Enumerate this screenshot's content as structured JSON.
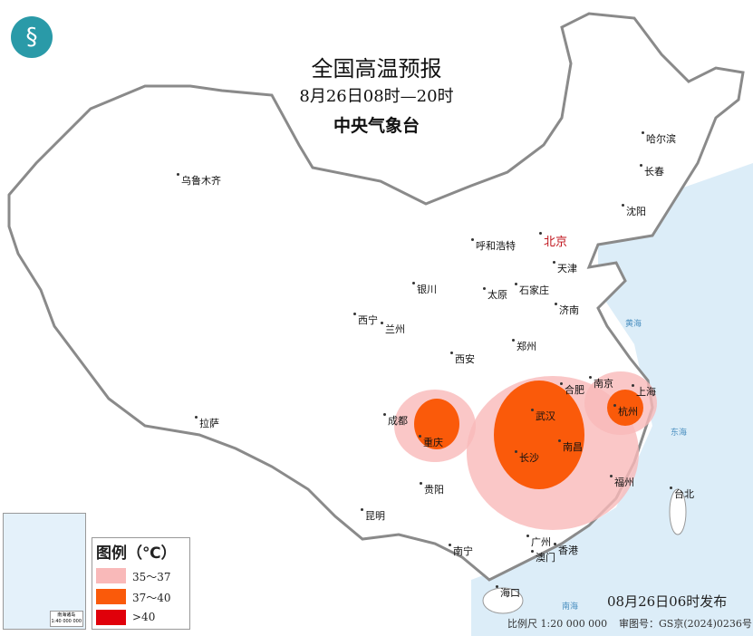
{
  "title": "全国高温预报",
  "period": "8月26日08时—20时",
  "issuer": "中央气象台",
  "logo_icon": "cma-logo",
  "cities": {
    "urumqi": "乌鲁木齐",
    "harbin": "哈尔滨",
    "changchun": "长春",
    "shenyang": "沈阳",
    "beijing": "北京",
    "tianjin": "天津",
    "hohhot": "呼和浩特",
    "shijiazhuang": "石家庄",
    "taiyuan": "太原",
    "yinchuan": "银川",
    "jinan": "济南",
    "xining": "西宁",
    "lanzhou": "兰州",
    "zhengzhou": "郑州",
    "xian": "西安",
    "hefei": "合肥",
    "nanjing": "南京",
    "shanghai": "上海",
    "hangzhou": "杭州",
    "wuhan": "武汉",
    "chengdu": "成都",
    "chongqing": "重庆",
    "lhasa": "拉萨",
    "changsha": "长沙",
    "nanchang": "南昌",
    "fuzhou": "福州",
    "taipei": "台北",
    "guiyang": "贵阳",
    "kunming": "昆明",
    "nanning": "南宁",
    "guangzhou": "广州",
    "hongkong": "香港",
    "macau": "澳门",
    "haikou": "海口"
  },
  "seas": {
    "yellow": "黄海",
    "east": "东海",
    "south": "南海"
  },
  "legend": {
    "title": "图例（℃）",
    "items": [
      {
        "label": "35～37",
        "color": "#f9b9b9"
      },
      {
        "label": "37～40",
        "color": "#fa5a0a"
      },
      {
        "label": ">40",
        "color": "#e0000a"
      }
    ]
  },
  "inset": {
    "title": "南海诸岛",
    "scale": "1:40 000 000"
  },
  "issue_time": "08月26日06时发布",
  "scale": "比例尺 1:20 000 000",
  "review_no": "审图号：GS京(2024)0236号",
  "colors": {
    "ocean": "#dcedf8",
    "land": "#ffffff",
    "border": "#8a8a8a",
    "capital": "#c0141c"
  }
}
